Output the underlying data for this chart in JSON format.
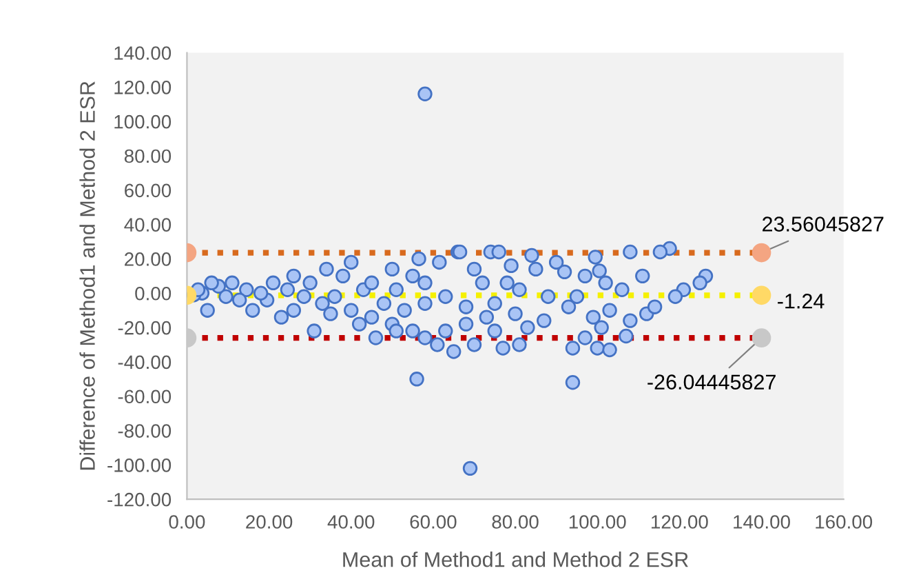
{
  "chart_data": {
    "type": "scatter",
    "xlabel": "Mean of Method1 and Method 2 ESR",
    "ylabel": "Difference of Method1 and Method 2 ESR",
    "xlim": [
      0,
      160
    ],
    "ylim": [
      -120,
      140
    ],
    "xticks": [
      {
        "value": 0,
        "label": "0.00"
      },
      {
        "value": 20,
        "label": "20.00"
      },
      {
        "value": 40,
        "label": "40.00"
      },
      {
        "value": 60,
        "label": "60.00"
      },
      {
        "value": 80,
        "label": "80.00"
      },
      {
        "value": 100,
        "label": "100.00"
      },
      {
        "value": 120,
        "label": "120.00"
      },
      {
        "value": 140,
        "label": "140.00"
      },
      {
        "value": 160,
        "label": "160.00"
      }
    ],
    "yticks": [
      {
        "value": -120,
        "label": "-120.00"
      },
      {
        "value": -100,
        "label": "-100.00"
      },
      {
        "value": -80,
        "label": "-80.00"
      },
      {
        "value": -60,
        "label": "-60.00"
      },
      {
        "value": -40,
        "label": "-40.00"
      },
      {
        "value": -20,
        "label": "-20.00"
      },
      {
        "value": 0,
        "label": "0.00"
      },
      {
        "value": 20,
        "label": "20.00"
      },
      {
        "value": 40,
        "label": "40.00"
      },
      {
        "value": 60,
        "label": "60.00"
      },
      {
        "value": 80,
        "label": "80.00"
      },
      {
        "value": 100,
        "label": "100.00"
      },
      {
        "value": 120,
        "label": "120.00"
      },
      {
        "value": 140,
        "label": "140.00"
      }
    ],
    "grid": false,
    "legend": false,
    "series": [
      {
        "color": "#a9c4f5",
        "marker": "circle",
        "x": [
          58,
          56,
          69,
          94,
          117.6,
          115.3,
          108,
          99.5,
          126.4,
          121,
          125,
          111,
          102,
          106,
          100.5,
          97,
          92,
          95,
          93,
          99,
          103,
          108,
          112,
          101,
          107,
          100,
          103,
          97,
          94,
          114,
          119,
          74,
          76,
          66,
          84,
          79,
          85,
          90,
          70,
          72,
          78,
          81,
          88,
          75,
          68,
          80,
          87,
          83,
          75,
          77,
          81,
          70,
          65,
          61,
          63,
          68,
          73,
          56.5,
          55,
          58,
          51,
          48,
          53,
          50,
          55,
          58,
          46,
          42,
          40,
          43,
          38,
          40,
          45,
          36,
          35,
          31,
          33,
          30,
          28.5,
          26,
          23,
          24.5,
          21,
          19.5,
          16,
          14.5,
          11,
          9.5,
          7.7,
          5,
          3.7,
          1.7,
          2.7,
          6,
          12.8,
          18,
          26,
          34,
          45,
          51,
          50,
          61.5,
          58,
          63,
          66.5
        ],
        "values": [
          116,
          -50,
          -102,
          -52,
          26,
          24,
          24,
          21,
          10,
          2,
          6,
          10,
          6,
          2,
          13,
          10,
          12.4,
          -2,
          -8,
          -14,
          -10,
          -16,
          -12,
          -20,
          -25,
          -32,
          -33,
          -26,
          -32,
          -8,
          -2,
          24,
          24,
          24,
          22,
          16,
          14,
          18,
          14,
          6,
          6,
          2,
          -2,
          -6,
          -8,
          -12,
          -16,
          -20,
          -22,
          -32,
          -30,
          -30,
          -34,
          -30,
          -22,
          -18,
          -14,
          20,
          10,
          6,
          2,
          -6,
          -10,
          -18,
          -22,
          -26,
          -26,
          -18,
          -10,
          2,
          10,
          18,
          6,
          -2,
          -12,
          -22,
          -6,
          6,
          -2,
          -10,
          -14,
          2,
          6,
          -4,
          -10,
          2,
          6,
          -2,
          4,
          -10,
          0,
          -1,
          2,
          6,
          -4,
          0,
          10,
          14,
          -14,
          -22,
          14,
          18,
          -6,
          -2,
          24
        ]
      },
      {
        "type": "line",
        "color": "#d86a1e",
        "colors": [
          "#f4a582",
          "#f4a582"
        ],
        "marker": "circle",
        "line_style": "dotted",
        "x": [
          0,
          140
        ],
        "values": [
          23.56045827,
          23.56045827
        ],
        "value_labels": [
          null,
          "23.56045827"
        ]
      },
      {
        "type": "line",
        "color": "#f5f000",
        "colors": [
          "#ffd966",
          "#ffd966"
        ],
        "marker": "circle",
        "line_style": "dotted",
        "x": [
          0,
          140
        ],
        "values": [
          -1.24,
          -1.24
        ],
        "value_labels": [
          null,
          "-1.24"
        ]
      },
      {
        "type": "line",
        "color": "#c00000",
        "colors": [
          "#c8c8c8",
          "#c8c8c8"
        ],
        "marker": "circle",
        "line_style": "dotted",
        "x": [
          0,
          140
        ],
        "values": [
          -26.04445827,
          -26.04445827
        ],
        "value_labels": [
          null,
          "-26.04445827"
        ]
      }
    ]
  }
}
